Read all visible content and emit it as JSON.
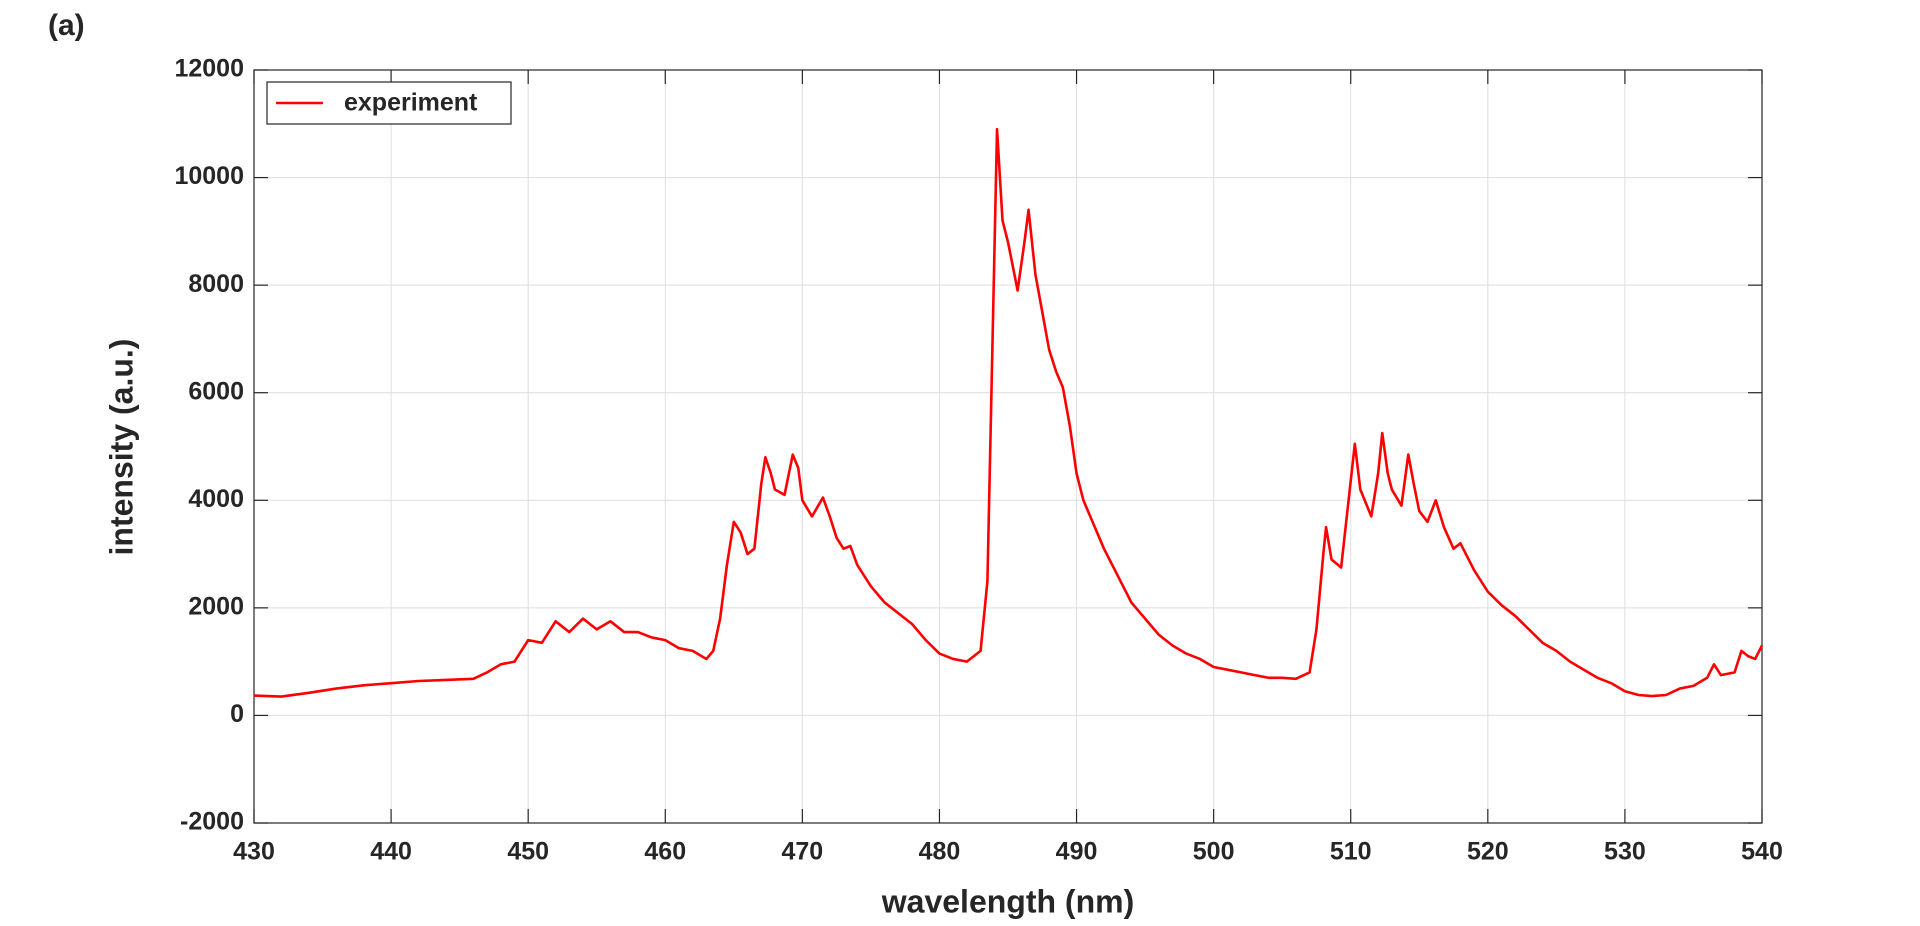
{
  "chart_data": {
    "type": "line",
    "panel_label": "(a)",
    "xlabel": "wavelength (nm)",
    "ylabel": "intensity (a.u.)",
    "xlim": [
      430,
      540
    ],
    "xticks": [
      430,
      440,
      450,
      460,
      470,
      480,
      490,
      500,
      510,
      520,
      530,
      540
    ],
    "ylim": [
      -2000,
      12000
    ],
    "yticks": [
      -2000,
      0,
      2000,
      4000,
      6000,
      8000,
      10000,
      12000
    ],
    "grid": true,
    "legend": "upper left",
    "x": [
      430,
      432,
      434,
      436,
      438,
      440,
      442,
      444,
      446,
      447,
      448,
      449,
      450,
      451,
      452,
      453,
      454,
      455,
      456,
      457,
      458,
      459,
      460,
      461,
      462,
      463,
      463.5,
      464,
      464.5,
      465,
      465.5,
      466,
      466.5,
      467,
      467.3,
      467.7,
      468,
      468.7,
      469.3,
      469.7,
      470,
      470.7,
      471.5,
      472,
      472.5,
      473,
      473.5,
      474,
      475,
      476,
      477,
      478,
      479,
      480,
      481,
      482,
      483,
      483.5,
      484,
      484.2,
      484.6,
      485,
      485.7,
      486.2,
      486.5,
      487,
      487.5,
      488,
      488.5,
      489,
      489.5,
      490,
      490.5,
      491,
      492,
      493,
      494,
      495,
      496,
      497,
      498,
      499,
      500,
      501,
      502,
      503,
      504,
      505,
      506,
      507,
      507.5,
      508,
      508.2,
      508.6,
      509.3,
      509.8,
      510.3,
      510.7,
      511.5,
      512,
      512.3,
      512.7,
      513,
      513.7,
      514.2,
      514.6,
      515,
      515.6,
      516.2,
      516.8,
      517.5,
      518,
      519,
      520,
      521,
      522,
      523,
      524,
      525,
      526,
      527,
      528,
      529,
      530,
      531,
      532,
      533,
      534,
      535,
      536,
      536.5,
      537,
      538,
      538.5,
      539,
      539.5,
      540
    ],
    "series": [
      {
        "name": "experiment",
        "color": "#ff0000",
        "values": [
          370,
          350,
          420,
          500,
          560,
          600,
          640,
          660,
          680,
          800,
          950,
          1000,
          1400,
          1350,
          1750,
          1550,
          1800,
          1600,
          1750,
          1550,
          1550,
          1450,
          1400,
          1250,
          1200,
          1050,
          1200,
          1800,
          2800,
          3600,
          3400,
          3000,
          3100,
          4300,
          4800,
          4500,
          4200,
          4100,
          4850,
          4600,
          4000,
          3700,
          4050,
          3700,
          3300,
          3100,
          3150,
          2800,
          2400,
          2100,
          1900,
          1700,
          1400,
          1150,
          1050,
          1000,
          1200,
          2500,
          8500,
          10900,
          9200,
          8800,
          7900,
          8800,
          9400,
          8200,
          7500,
          6800,
          6400,
          6100,
          5400,
          4500,
          4000,
          3700,
          3100,
          2600,
          2100,
          1800,
          1500,
          1300,
          1150,
          1050,
          900,
          850,
          800,
          750,
          700,
          700,
          680,
          800,
          1600,
          3000,
          3500,
          2900,
          2750,
          3900,
          5050,
          4200,
          3700,
          4500,
          5250,
          4500,
          4200,
          3900,
          4850,
          4300,
          3800,
          3600,
          4000,
          3500,
          3100,
          3200,
          2700,
          2300,
          2050,
          1850,
          1600,
          1350,
          1200,
          1000,
          850,
          700,
          600,
          450,
          380,
          360,
          380,
          500,
          550,
          700,
          950,
          750,
          800,
          1200,
          1100,
          1050,
          1300
        ]
      }
    ]
  }
}
